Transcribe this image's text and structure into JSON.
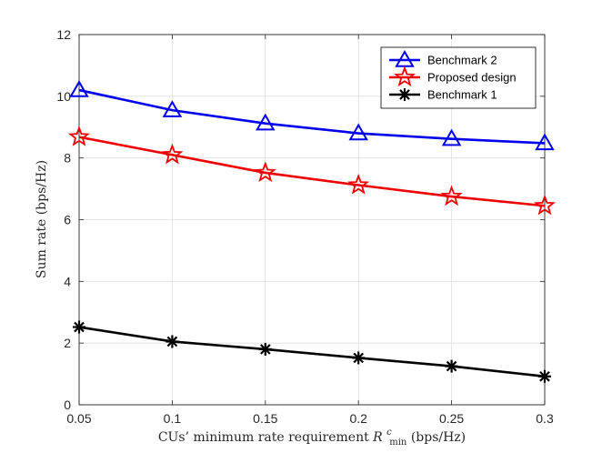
{
  "chart_data": {
    "type": "line",
    "x": [
      0.05,
      0.1,
      0.15,
      0.2,
      0.25,
      0.3
    ],
    "x_tick_labels": [
      "0.05",
      "0.1",
      "0.15",
      "0.2",
      "0.25",
      "0.3"
    ],
    "y_tick_labels": [
      "0",
      "2",
      "4",
      "6",
      "8",
      "10",
      "12"
    ],
    "xlim": [
      0.05,
      0.3
    ],
    "ylim": [
      0,
      12
    ],
    "xlabel_prefix": "CUs’ minimum rate requirement ",
    "xlabel_symbol": "R",
    "xlabel_sup": "c",
    "xlabel_sub": "min",
    "xlabel_suffix": " (bps/Hz)",
    "ylabel": "Sum rate (bps/Hz)",
    "grid": true,
    "legend_position": "top-right",
    "series": [
      {
        "name": "Benchmark 2",
        "color": "#0000ee",
        "marker": "triangle",
        "values": [
          10.2,
          9.55,
          9.12,
          8.8,
          8.62,
          8.48
        ]
      },
      {
        "name": "Proposed design",
        "color": "#ee0000",
        "marker": "star",
        "values": [
          8.68,
          8.1,
          7.52,
          7.12,
          6.75,
          6.45
        ]
      },
      {
        "name": "Benchmark 1",
        "color": "#000000",
        "marker": "asterisk",
        "values": [
          2.52,
          2.05,
          1.8,
          1.52,
          1.25,
          0.92
        ]
      }
    ]
  }
}
